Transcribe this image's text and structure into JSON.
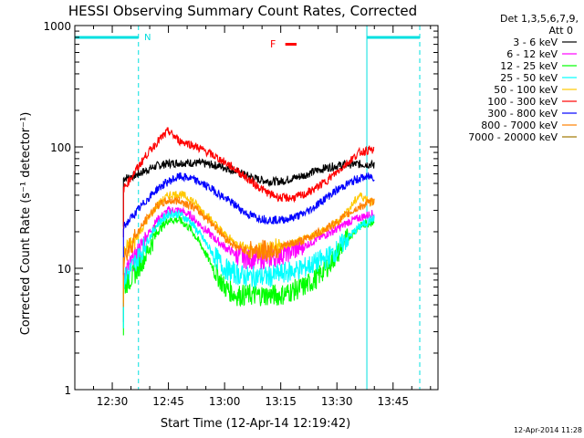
{
  "chart_data": {
    "type": "line",
    "title": "HESSI Observing Summary Count Rates, Corrected",
    "xlabel": "Start Time (12-Apr-14 12:19:42)",
    "ylabel": "Corrected Count Rate (s⁻¹ detector⁻¹)",
    "yscale": "log",
    "ylim": [
      1,
      1000
    ],
    "xlim_minutes_after_1220": [
      0,
      97
    ],
    "x_tick_labels": [
      "12:30",
      "12:45",
      "13:00",
      "13:15",
      "13:30",
      "13:45"
    ],
    "y_tick_labels": [
      "1",
      "10",
      "100",
      "1000"
    ],
    "legend_header": [
      "Det 1,3,5,6,7,9,",
      "Att 0"
    ],
    "legend_position": "top-right",
    "footer_date": "12-Apr-2014 11:28",
    "annotations": {
      "night_marker": "N",
      "flare_marker": "F"
    },
    "night_intervals": [
      {
        "start": "12:19:42",
        "end": "12:37:00"
      },
      {
        "start": "13:38:00",
        "end": "13:55:00"
      }
    ],
    "flare_interval": {
      "start": "13:15:00",
      "end": "13:18:00"
    },
    "series": [
      {
        "name": "3 - 6 keV",
        "color": "#000000",
        "x": [
          "12:33",
          "12:36",
          "12:39",
          "12:42",
          "12:45",
          "12:48",
          "12:51",
          "12:54",
          "12:57",
          "13:00",
          "13:03",
          "13:06",
          "13:09",
          "13:12",
          "13:15",
          "13:18",
          "13:21",
          "13:24",
          "13:27",
          "13:30",
          "13:33",
          "13:36",
          "13:39",
          "13:40"
        ],
        "y": [
          55,
          58,
          64,
          70,
          73,
          74,
          74,
          73,
          71,
          68,
          63,
          58,
          54,
          52,
          52,
          55,
          58,
          63,
          67,
          70,
          72,
          72,
          72,
          70
        ]
      },
      {
        "name": "6 - 12 keV",
        "color": "#ff00ff",
        "x": [
          "12:33",
          "12:36",
          "12:39",
          "12:42",
          "12:45",
          "12:48",
          "12:51",
          "12:54",
          "12:57",
          "13:00",
          "13:03",
          "13:06",
          "13:09",
          "13:12",
          "13:15",
          "13:18",
          "13:21",
          "13:24",
          "13:27",
          "13:30",
          "13:33",
          "13:36",
          "13:39",
          "13:40"
        ],
        "y": [
          9,
          12,
          18,
          25,
          30,
          30,
          27,
          22,
          18,
          15,
          13,
          12,
          12,
          12,
          13,
          14,
          15,
          17,
          19,
          21,
          24,
          26,
          28,
          28
        ]
      },
      {
        "name": "12 - 25 keV",
        "color": "#00ff00",
        "x": [
          "12:33",
          "12:36",
          "12:39",
          "12:42",
          "12:45",
          "12:48",
          "12:51",
          "12:54",
          "12:57",
          "13:00",
          "13:03",
          "13:06",
          "13:09",
          "13:12",
          "13:15",
          "13:18",
          "13:21",
          "13:24",
          "13:27",
          "13:30",
          "13:33",
          "13:36",
          "13:39",
          "13:40"
        ],
        "y": [
          7,
          9,
          13,
          20,
          25,
          25,
          21,
          15,
          10,
          7,
          6,
          6,
          6,
          6,
          6,
          6.5,
          7,
          8,
          10,
          13,
          18,
          22,
          24,
          25
        ]
      },
      {
        "name": "25 - 50 keV",
        "color": "#00ffff",
        "x": [
          "12:33",
          "12:36",
          "12:39",
          "12:42",
          "12:45",
          "12:48",
          "12:51",
          "12:54",
          "12:57",
          "13:00",
          "13:03",
          "13:06",
          "13:09",
          "13:12",
          "13:15",
          "13:18",
          "13:21",
          "13:24",
          "13:27",
          "13:30",
          "13:33",
          "13:36",
          "13:39",
          "13:40"
        ],
        "y": [
          8,
          11,
          16,
          23,
          28,
          28,
          24,
          18,
          13,
          10,
          9,
          8.5,
          8.5,
          8.5,
          9,
          9.5,
          10,
          11,
          12,
          14,
          18,
          22,
          25,
          26
        ]
      },
      {
        "name": "50 - 100 keV",
        "color": "#ffc800",
        "x": [
          "12:33",
          "12:36",
          "12:39",
          "12:42",
          "12:45",
          "12:48",
          "12:51",
          "12:54",
          "12:57",
          "13:00",
          "13:03",
          "13:06",
          "13:09",
          "13:12",
          "13:15",
          "13:18",
          "13:21",
          "13:24",
          "13:27",
          "13:30",
          "13:33",
          "13:36",
          "13:39",
          "13:40"
        ],
        "y": [
          13,
          17,
          24,
          33,
          40,
          41,
          37,
          30,
          24,
          19,
          16,
          15,
          14,
          14,
          15,
          16,
          17,
          19,
          21,
          24,
          30,
          40,
          36,
          34
        ]
      },
      {
        "name": "100 - 300 keV",
        "color": "#ff0000",
        "x": [
          "12:33",
          "12:36",
          "12:39",
          "12:42",
          "12:45",
          "12:48",
          "12:51",
          "12:54",
          "12:57",
          "13:00",
          "13:03",
          "13:06",
          "13:09",
          "13:12",
          "13:15",
          "13:18",
          "13:21",
          "13:24",
          "13:27",
          "13:30",
          "13:33",
          "13:36",
          "13:39",
          "13:40"
        ],
        "y": [
          45,
          62,
          85,
          110,
          135,
          112,
          105,
          95,
          85,
          75,
          65,
          55,
          47,
          41,
          38,
          38,
          40,
          45,
          52,
          62,
          75,
          90,
          95,
          92
        ]
      },
      {
        "name": "300 - 800 keV",
        "color": "#0000ff",
        "x": [
          "12:33",
          "12:36",
          "12:39",
          "12:42",
          "12:45",
          "12:48",
          "12:51",
          "12:54",
          "12:57",
          "13:00",
          "13:03",
          "13:06",
          "13:09",
          "13:12",
          "13:15",
          "13:18",
          "13:21",
          "13:24",
          "13:27",
          "13:30",
          "13:33",
          "13:36",
          "13:39",
          "13:40"
        ],
        "y": [
          22,
          28,
          36,
          45,
          52,
          57,
          55,
          50,
          44,
          38,
          33,
          28,
          26,
          25,
          25,
          26,
          28,
          32,
          38,
          44,
          50,
          55,
          57,
          56
        ]
      },
      {
        "name": "800 - 7000 keV",
        "color": "#ff8000",
        "x": [
          "12:33",
          "12:36",
          "12:39",
          "12:42",
          "12:45",
          "12:48",
          "12:51",
          "12:54",
          "12:57",
          "13:00",
          "13:03",
          "13:06",
          "13:09",
          "13:12",
          "13:15",
          "13:18",
          "13:21",
          "13:24",
          "13:27",
          "13:30",
          "13:33",
          "13:36",
          "13:39",
          "13:40"
        ],
        "y": [
          12,
          18,
          25,
          33,
          36,
          36,
          33,
          28,
          23,
          18,
          15,
          14,
          14,
          14,
          15,
          16,
          17,
          19,
          21,
          24,
          28,
          32,
          35,
          36
        ]
      },
      {
        "name": "7000 - 20000 keV",
        "color": "#a07800",
        "x": [],
        "y": []
      }
    ]
  }
}
